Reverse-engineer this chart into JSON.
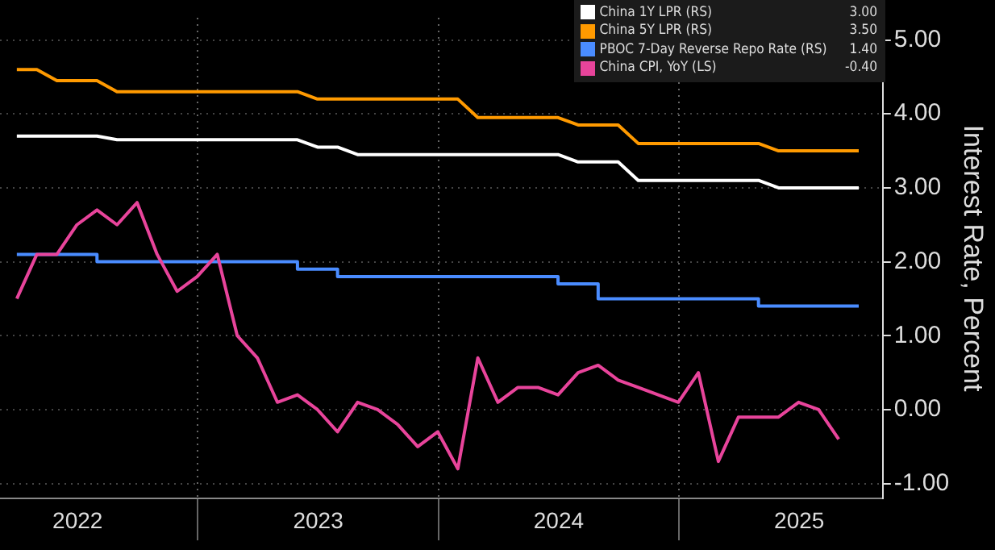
{
  "chart_data": {
    "type": "line",
    "ylabel": "Interest Rate, Percent",
    "legend": "top right",
    "annotations": [
      "3.00",
      "3.50",
      "1.40",
      "-0.40"
    ],
    "grid": true,
    "marker": "none",
    "line_style": "solid",
    "x": [
      "2022-03-31",
      "2022-04-30",
      "2022-05-31",
      "2022-06-30",
      "2022-07-31",
      "2022-08-31",
      "2022-09-30",
      "2022-10-31",
      "2022-11-30",
      "2022-12-31",
      "2023-01-31",
      "2023-02-28",
      "2023-03-31",
      "2023-04-30",
      "2023-05-31",
      "2023-06-30",
      "2023-07-31",
      "2023-08-31",
      "2023-09-30",
      "2023-10-31",
      "2023-11-30",
      "2023-12-31",
      "2024-01-31",
      "2024-02-29",
      "2024-03-31",
      "2024-04-30",
      "2024-05-31",
      "2024-06-30",
      "2024-07-31",
      "2024-08-31",
      "2024-09-30",
      "2024-10-31",
      "2024-11-30",
      "2024-12-31",
      "2025-01-31",
      "2025-02-28",
      "2025-03-31",
      "2025-04-30",
      "2025-05-31",
      "2025-06-30",
      "2025-07-31",
      "2025-08-31",
      "2025-09-30"
    ],
    "xlim": [
      "2022-03-05",
      "2025-11-06"
    ],
    "xticks": [
      {
        "value": "2022-07-01",
        "label": "2022"
      },
      {
        "value": "2023-01-01",
        "label": null
      },
      {
        "value": "2023-07-01",
        "label": "2023"
      },
      {
        "value": "2024-01-01",
        "label": null
      },
      {
        "value": "2024-07-01",
        "label": "2024"
      },
      {
        "value": "2025-01-01",
        "label": null
      },
      {
        "value": "2025-07-01",
        "label": "2025"
      }
    ],
    "ylim": [
      -1.2,
      5.3
    ],
    "yticks": [
      {
        "value": -1,
        "label": "-1.00"
      },
      {
        "value": 0,
        "label": "0.00"
      },
      {
        "value": 1,
        "label": "1.00"
      },
      {
        "value": 2,
        "label": "2.00"
      },
      {
        "value": 3,
        "label": "3.00"
      },
      {
        "value": 4,
        "label": "4.00"
      },
      {
        "value": 5,
        "label": "5.00"
      }
    ],
    "series": [
      {
        "name": "China 1Y LPR (RS)",
        "color": "#ffffff",
        "values": [
          3.7,
          3.7,
          3.7,
          3.7,
          3.7,
          3.65,
          3.65,
          3.65,
          3.65,
          3.65,
          3.65,
          3.65,
          3.65,
          3.65,
          3.65,
          3.55,
          3.55,
          3.45,
          3.45,
          3.45,
          3.45,
          3.45,
          3.45,
          3.45,
          3.45,
          3.45,
          3.45,
          3.45,
          3.35,
          3.35,
          3.35,
          3.1,
          3.1,
          3.1,
          3.1,
          3.1,
          3.1,
          3.1,
          3.0,
          3.0,
          3.0,
          3.0,
          3.0
        ]
      },
      {
        "name": "China 5Y LPR (RS)",
        "color": "#ff9a00",
        "values": [
          4.6,
          4.6,
          4.45,
          4.45,
          4.45,
          4.3,
          4.3,
          4.3,
          4.3,
          4.3,
          4.3,
          4.3,
          4.3,
          4.3,
          4.3,
          4.2,
          4.2,
          4.2,
          4.2,
          4.2,
          4.2,
          4.2,
          4.2,
          3.95,
          3.95,
          3.95,
          3.95,
          3.95,
          3.85,
          3.85,
          3.85,
          3.6,
          3.6,
          3.6,
          3.6,
          3.6,
          3.6,
          3.6,
          3.5,
          3.5,
          3.5,
          3.5,
          3.5
        ]
      },
      {
        "name": "PBOC 7-Day Reverse Repo Rate (RS)",
        "color": "#4a8cff",
        "type": "step",
        "values": [
          2.1,
          2.1,
          2.1,
          2.1,
          2.1,
          2.0,
          2.0,
          2.0,
          2.0,
          2.0,
          2.0,
          2.0,
          2.0,
          2.0,
          2.0,
          1.9,
          1.9,
          1.8,
          1.8,
          1.8,
          1.8,
          1.8,
          1.8,
          1.8,
          1.8,
          1.8,
          1.8,
          1.8,
          1.7,
          1.7,
          1.5,
          1.5,
          1.5,
          1.5,
          1.5,
          1.5,
          1.5,
          1.5,
          1.4,
          1.4,
          1.4,
          1.4,
          1.4
        ]
      },
      {
        "name": "China CPI, YoY (LS)",
        "color": "#e8449b",
        "values": [
          1.5,
          2.1,
          2.1,
          2.5,
          2.7,
          2.5,
          2.8,
          2.1,
          1.6,
          1.8,
          2.1,
          1.0,
          0.7,
          0.1,
          0.2,
          0.0,
          -0.3,
          0.1,
          0.0,
          -0.2,
          -0.5,
          -0.3,
          -0.8,
          0.7,
          0.1,
          0.3,
          0.3,
          0.2,
          0.5,
          0.6,
          0.4,
          0.3,
          0.2,
          0.1,
          0.5,
          -0.7,
          -0.1,
          -0.1,
          -0.1,
          0.1,
          0.0,
          -0.4,
          null
        ]
      }
    ]
  }
}
